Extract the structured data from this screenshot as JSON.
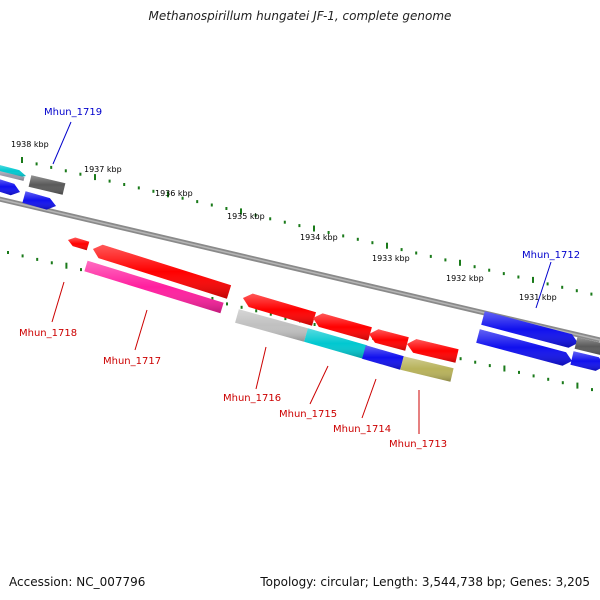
{
  "title": "Methanospirillum hungatei JF-1, complete genome",
  "footer": {
    "accession": "Accession: NC_007796",
    "summary": "Topology: circular; Length: 3,544,738 bp; Genes: 3,205"
  },
  "ruler": [
    {
      "label": "1938 kbp"
    },
    {
      "label": "1937 kbp"
    },
    {
      "label": "1936 kbp"
    },
    {
      "label": "1935 kbp"
    },
    {
      "label": "1934 kbp"
    },
    {
      "label": "1933 kbp"
    },
    {
      "label": "1932 kbp"
    },
    {
      "label": "1931 kbp"
    }
  ],
  "gene_labels": [
    {
      "name": "Mhun_1719",
      "strand": "top"
    },
    {
      "name": "Mhun_1712",
      "strand": "top"
    },
    {
      "name": "Mhun_1718",
      "strand": "bottom"
    },
    {
      "name": "Mhun_1717",
      "strand": "bottom"
    },
    {
      "name": "Mhun_1716",
      "strand": "bottom"
    },
    {
      "name": "Mhun_1715",
      "strand": "bottom"
    },
    {
      "name": "Mhun_1714",
      "strand": "bottom"
    },
    {
      "name": "Mhun_1713",
      "strand": "bottom"
    }
  ],
  "colors": {
    "top_label": "#0000cc",
    "bottom_label": "#cc0000",
    "red_gene": "#ff0000",
    "pink_gene": "#ff1f9f",
    "blue_gene": "#1010ee",
    "cyan_gene": "#00c8d0",
    "grey_gene": "#c0c0c0",
    "dark_grey_gene": "#5a5a5a",
    "olive_gene": "#b8b25a",
    "backbone": "#777777",
    "tick": "#1a7a1a"
  }
}
